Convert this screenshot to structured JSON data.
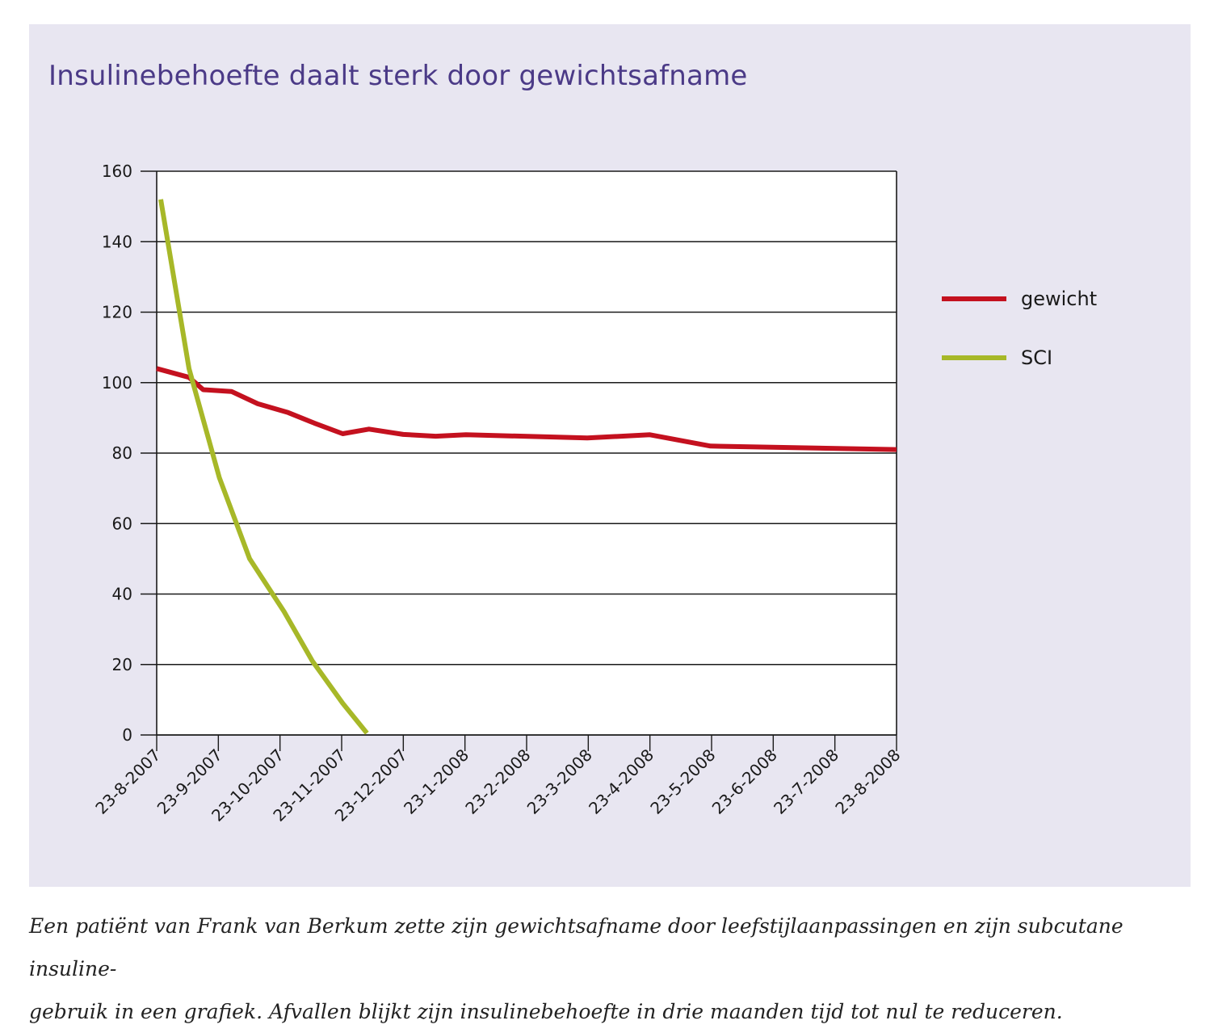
{
  "title": "Insulinebehoefte daalt sterk door gewichtsafname",
  "caption_line1": "Een patiënt van Frank van Berkum zette zijn gewichtsafname door leefstijlaanpassingen en zijn subcutane insuline-",
  "caption_line2": "gebruik in een grafiek. Afvallen blijkt zijn insulinebehoefte in drie maanden tijd tot nul te reduceren.",
  "colors": {
    "panel": "#e8e6f1",
    "title": "#4b3a87",
    "gewicht": "#c4111f",
    "sci": "#a7b828"
  },
  "chart_data": {
    "type": "line",
    "title": "Insulinebehoefte daalt sterk door gewichtsafname",
    "xlabel": "",
    "ylabel": "",
    "ylim": [
      0,
      160
    ],
    "yticks": [
      0,
      20,
      40,
      60,
      80,
      100,
      120,
      140,
      160
    ],
    "xlim": [
      "23-8-2007",
      "23-8-2008"
    ],
    "xticks": [
      "23-8-2007",
      "23-9-2007",
      "23-10-2007",
      "23-11-2007",
      "23-12-2007",
      "23-1-2008",
      "23-2-2008",
      "23-3-2008",
      "23-4-2008",
      "23-5-2008",
      "23-6-2008",
      "23-7-2008",
      "23-8-2008"
    ],
    "grid": "horizontal",
    "legend": "right",
    "series": [
      {
        "name": "gewicht",
        "color": "#c4111f",
        "points": [
          [
            "23-8-2007",
            104
          ],
          [
            "8-9-2007",
            101.5
          ],
          [
            "15-9-2007",
            98
          ],
          [
            "29-9-2007",
            97.5
          ],
          [
            "12-10-2007",
            94
          ],
          [
            "27-10-2007",
            91.5
          ],
          [
            "9-11-2007",
            88.5
          ],
          [
            "23-11-2007",
            85.5
          ],
          [
            "6-12-2007",
            86.8
          ],
          [
            "23-12-2007",
            85.3
          ],
          [
            "8-1-2008",
            84.8
          ],
          [
            "23-1-2008",
            85.2
          ],
          [
            "23-3-2008",
            84.3
          ],
          [
            "23-4-2008",
            85.2
          ],
          [
            "23-5-2008",
            82
          ],
          [
            "23-8-2008",
            81
          ]
        ]
      },
      {
        "name": "SCI",
        "color": "#a7b828",
        "points": [
          [
            "25-8-2007",
            152
          ],
          [
            "8-9-2007",
            104
          ],
          [
            "23-9-2007",
            73
          ],
          [
            "8-10-2007",
            50
          ],
          [
            "25-10-2007",
            35
          ],
          [
            "8-11-2007",
            21
          ],
          [
            "23-11-2007",
            9
          ],
          [
            "5-12-2007",
            0.5
          ]
        ]
      }
    ]
  }
}
